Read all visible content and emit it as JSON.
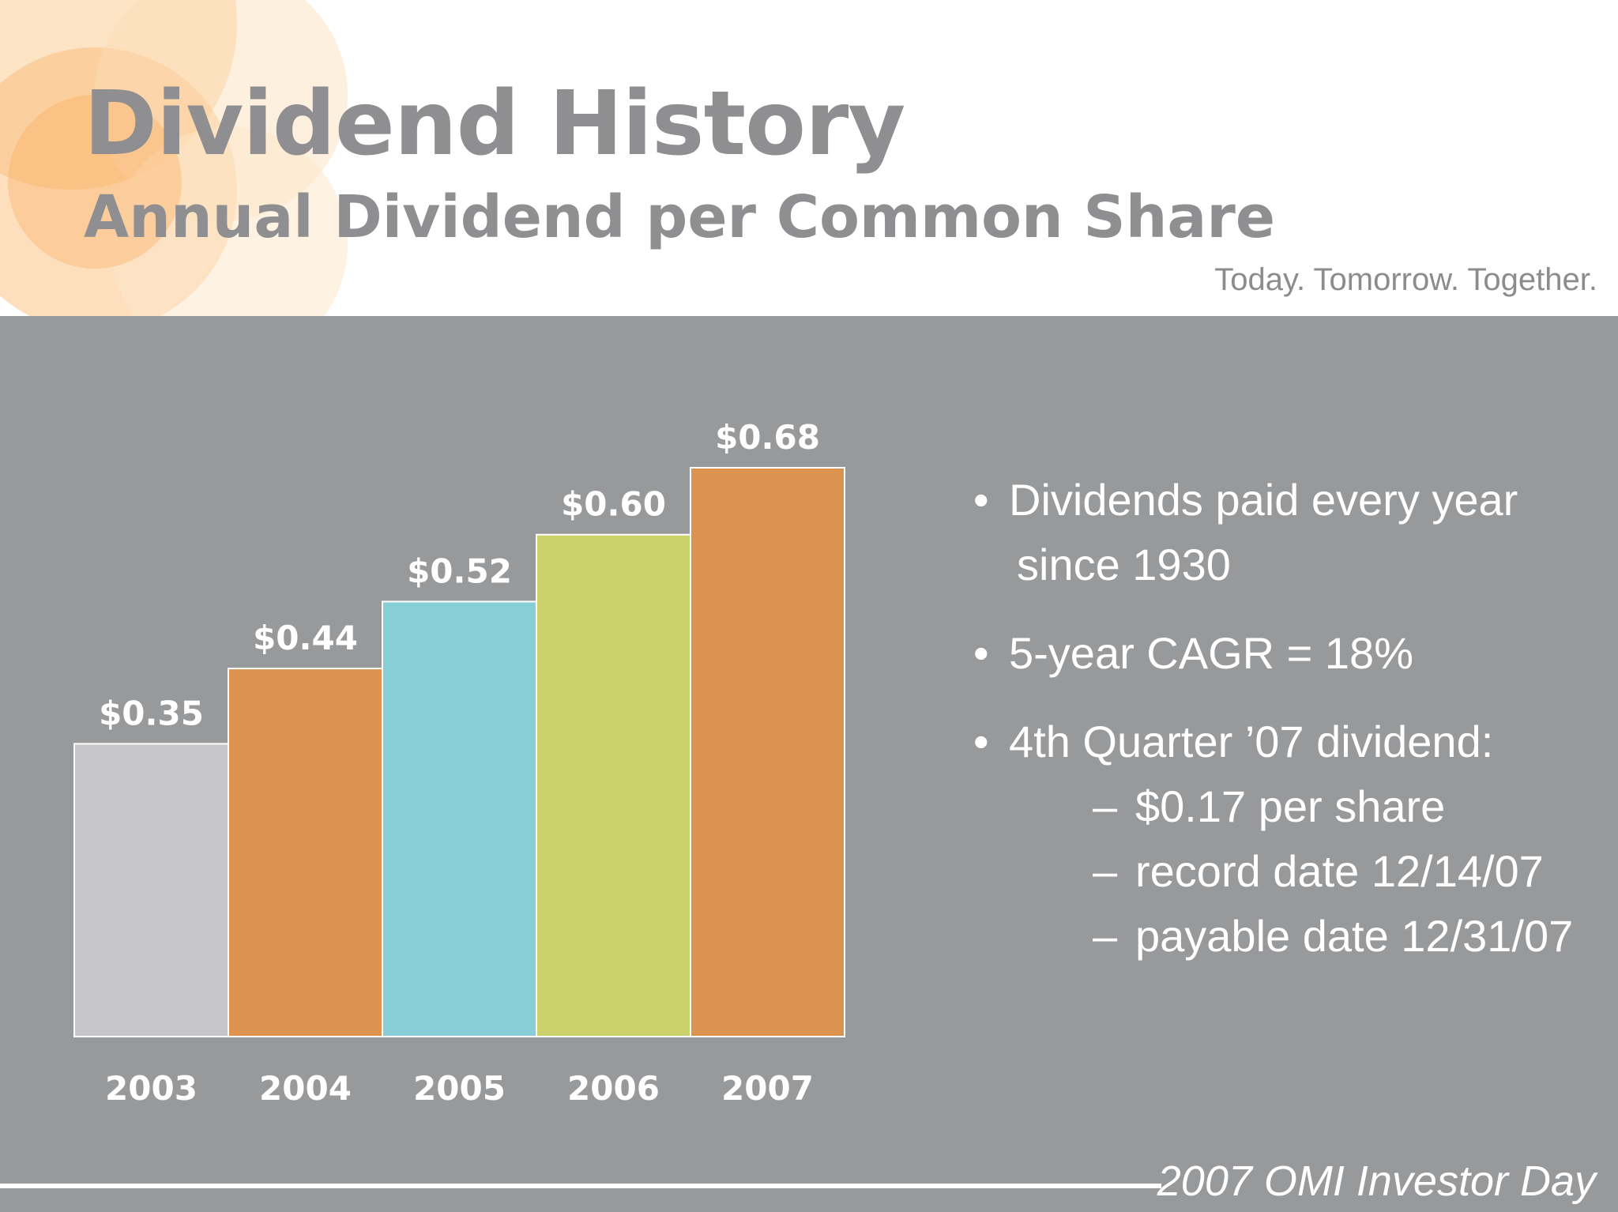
{
  "header": {
    "title": "Dividend History",
    "subtitle": "Annual Dividend per Common Share",
    "tagline": "Today. Tomorrow. Together."
  },
  "chart_data": {
    "type": "bar",
    "title": "Annual Dividend per Common Share",
    "categories": [
      "2003",
      "2004",
      "2005",
      "2006",
      "2007"
    ],
    "values": [
      0.35,
      0.44,
      0.52,
      0.6,
      0.68
    ],
    "labels": [
      "$0.35",
      "$0.44",
      "$0.52",
      "$0.60",
      "$0.68"
    ],
    "colors": [
      "#c6c6c8",
      "#dc934f",
      "#88ced6",
      "#cbd26c",
      "#dc934f"
    ],
    "xlabel": "",
    "ylabel": "",
    "ylim": [
      0,
      0.68
    ],
    "grid": false,
    "legend": "none"
  },
  "bullets": {
    "b1_line1": "Dividends paid every year",
    "b1_line2": "since 1930",
    "b2": "5-year CAGR = 18%",
    "b3": "4th Quarter ’07 dividend:",
    "b3_subs": [
      "$0.17 per share",
      "record date 12/14/07",
      "payable date 12/31/07"
    ],
    "bullet_glyph": "•",
    "dash_glyph": "–"
  },
  "footer": {
    "text": "2007 OMI Investor Day"
  }
}
